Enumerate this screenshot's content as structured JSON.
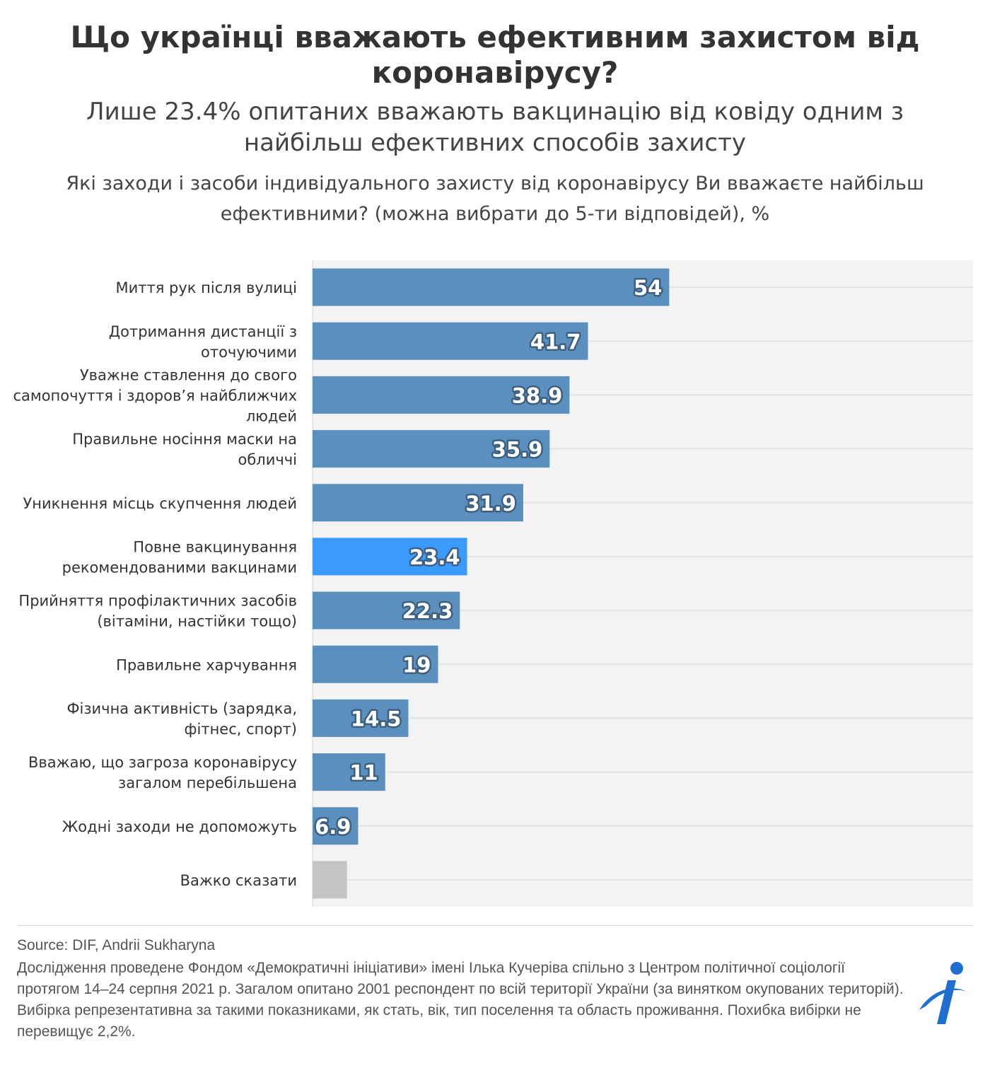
{
  "header": {
    "title": "Що українці вважають ефективним захистом від коронавірусу?",
    "subtitle": "Лише 23.4% опитаних вважають вакцинацію від ковіду одним з найбільш ефективних способів захисту",
    "question": "Які заходи і засоби індивідуального захисту від коронавірусу Ви вважаєте найбільш ефективними? (можна вибрати до 5-ти відповідей), %"
  },
  "footer": {
    "source": "Source: DIF, Andrii Sukharyna",
    "note": "Дослідження проведене Фондом «Демократичні ініціативи» імені Ілька Кучеріва спільно з Центром політичної соціології протягом 14–24 серпня 2021 р. Загалом опитано 2001 респондент по всій території України (за винятком окупованих територій). Вибірка репрезентативна за такими показниками, як стать, вік, тип поселення та область проживання. Похибка вибірки не перевищує 2,2%."
  },
  "logo_icon": "dif-logo-icon",
  "colors": {
    "bar": "#5b8fbd",
    "highlight": "#3a9bfc",
    "unknown": "#c4c4c4",
    "plot_bg": "#f3f3f3",
    "logo": "#1f6fd1"
  },
  "chart_data": {
    "type": "bar",
    "orientation": "horizontal",
    "title": "Що українці вважають ефективним захистом від коронавірусу?",
    "subtitle": "Лише 23.4% опитаних вважають вакцинацію від ковіду одним з найбільш ефективних способів захисту",
    "categories": [
      "Миття рук після вулиці",
      "Дотримання дистанції з оточуючими",
      "Уважне ставлення до свого самопочуття і здоров’я найближчих людей",
      "Правильне носіння маски на обличчі",
      "Уникнення місць скупчення людей",
      "Повне вакцинування рекомендованими вакцинами",
      "Прийняття профілактичних засобів (вітаміни, настійки тощо)",
      "Правильне харчування",
      "Фізична активність (зарядка, фітнес, спорт)",
      "Вважаю, що загроза коронавірусу загалом перебільшена",
      "Жодні заходи не допоможуть",
      "Важко сказати"
    ],
    "label_lines": [
      [
        "Миття рук після вулиці"
      ],
      [
        "Дотримання дистанції з",
        "оточуючими"
      ],
      [
        "Уважне ставлення до свого",
        "самопочуття і здоров’я найближчих",
        "людей"
      ],
      [
        "Правильне носіння маски на",
        "обличчі"
      ],
      [
        "Уникнення місць скупчення людей"
      ],
      [
        "Повне вакцинування",
        "рекомендованими вакцинами"
      ],
      [
        "Прийняття профілактичних засобів",
        "(вітаміни, настійки тощо)"
      ],
      [
        "Правильне харчування"
      ],
      [
        "Фізична активність (зарядка,",
        "фітнес, спорт)"
      ],
      [
        "Вважаю, що загроза коронавірусу",
        "загалом перебільшена"
      ],
      [
        "Жодні заходи не допоможуть"
      ],
      [
        "Важко сказати"
      ]
    ],
    "values": [
      54,
      41.7,
      38.9,
      35.9,
      31.9,
      23.4,
      22.3,
      19,
      14.5,
      11,
      6.9,
      5.2
    ],
    "value_labels": [
      "54",
      "41.7",
      "38.9",
      "35.9",
      "31.9",
      "23.4",
      "22.3",
      "19",
      "14.5",
      "11",
      "6.9",
      ""
    ],
    "highlight_index": 5,
    "unknown_index": 11,
    "xlim": [
      0,
      100
    ],
    "grid": true,
    "legend": "none"
  }
}
